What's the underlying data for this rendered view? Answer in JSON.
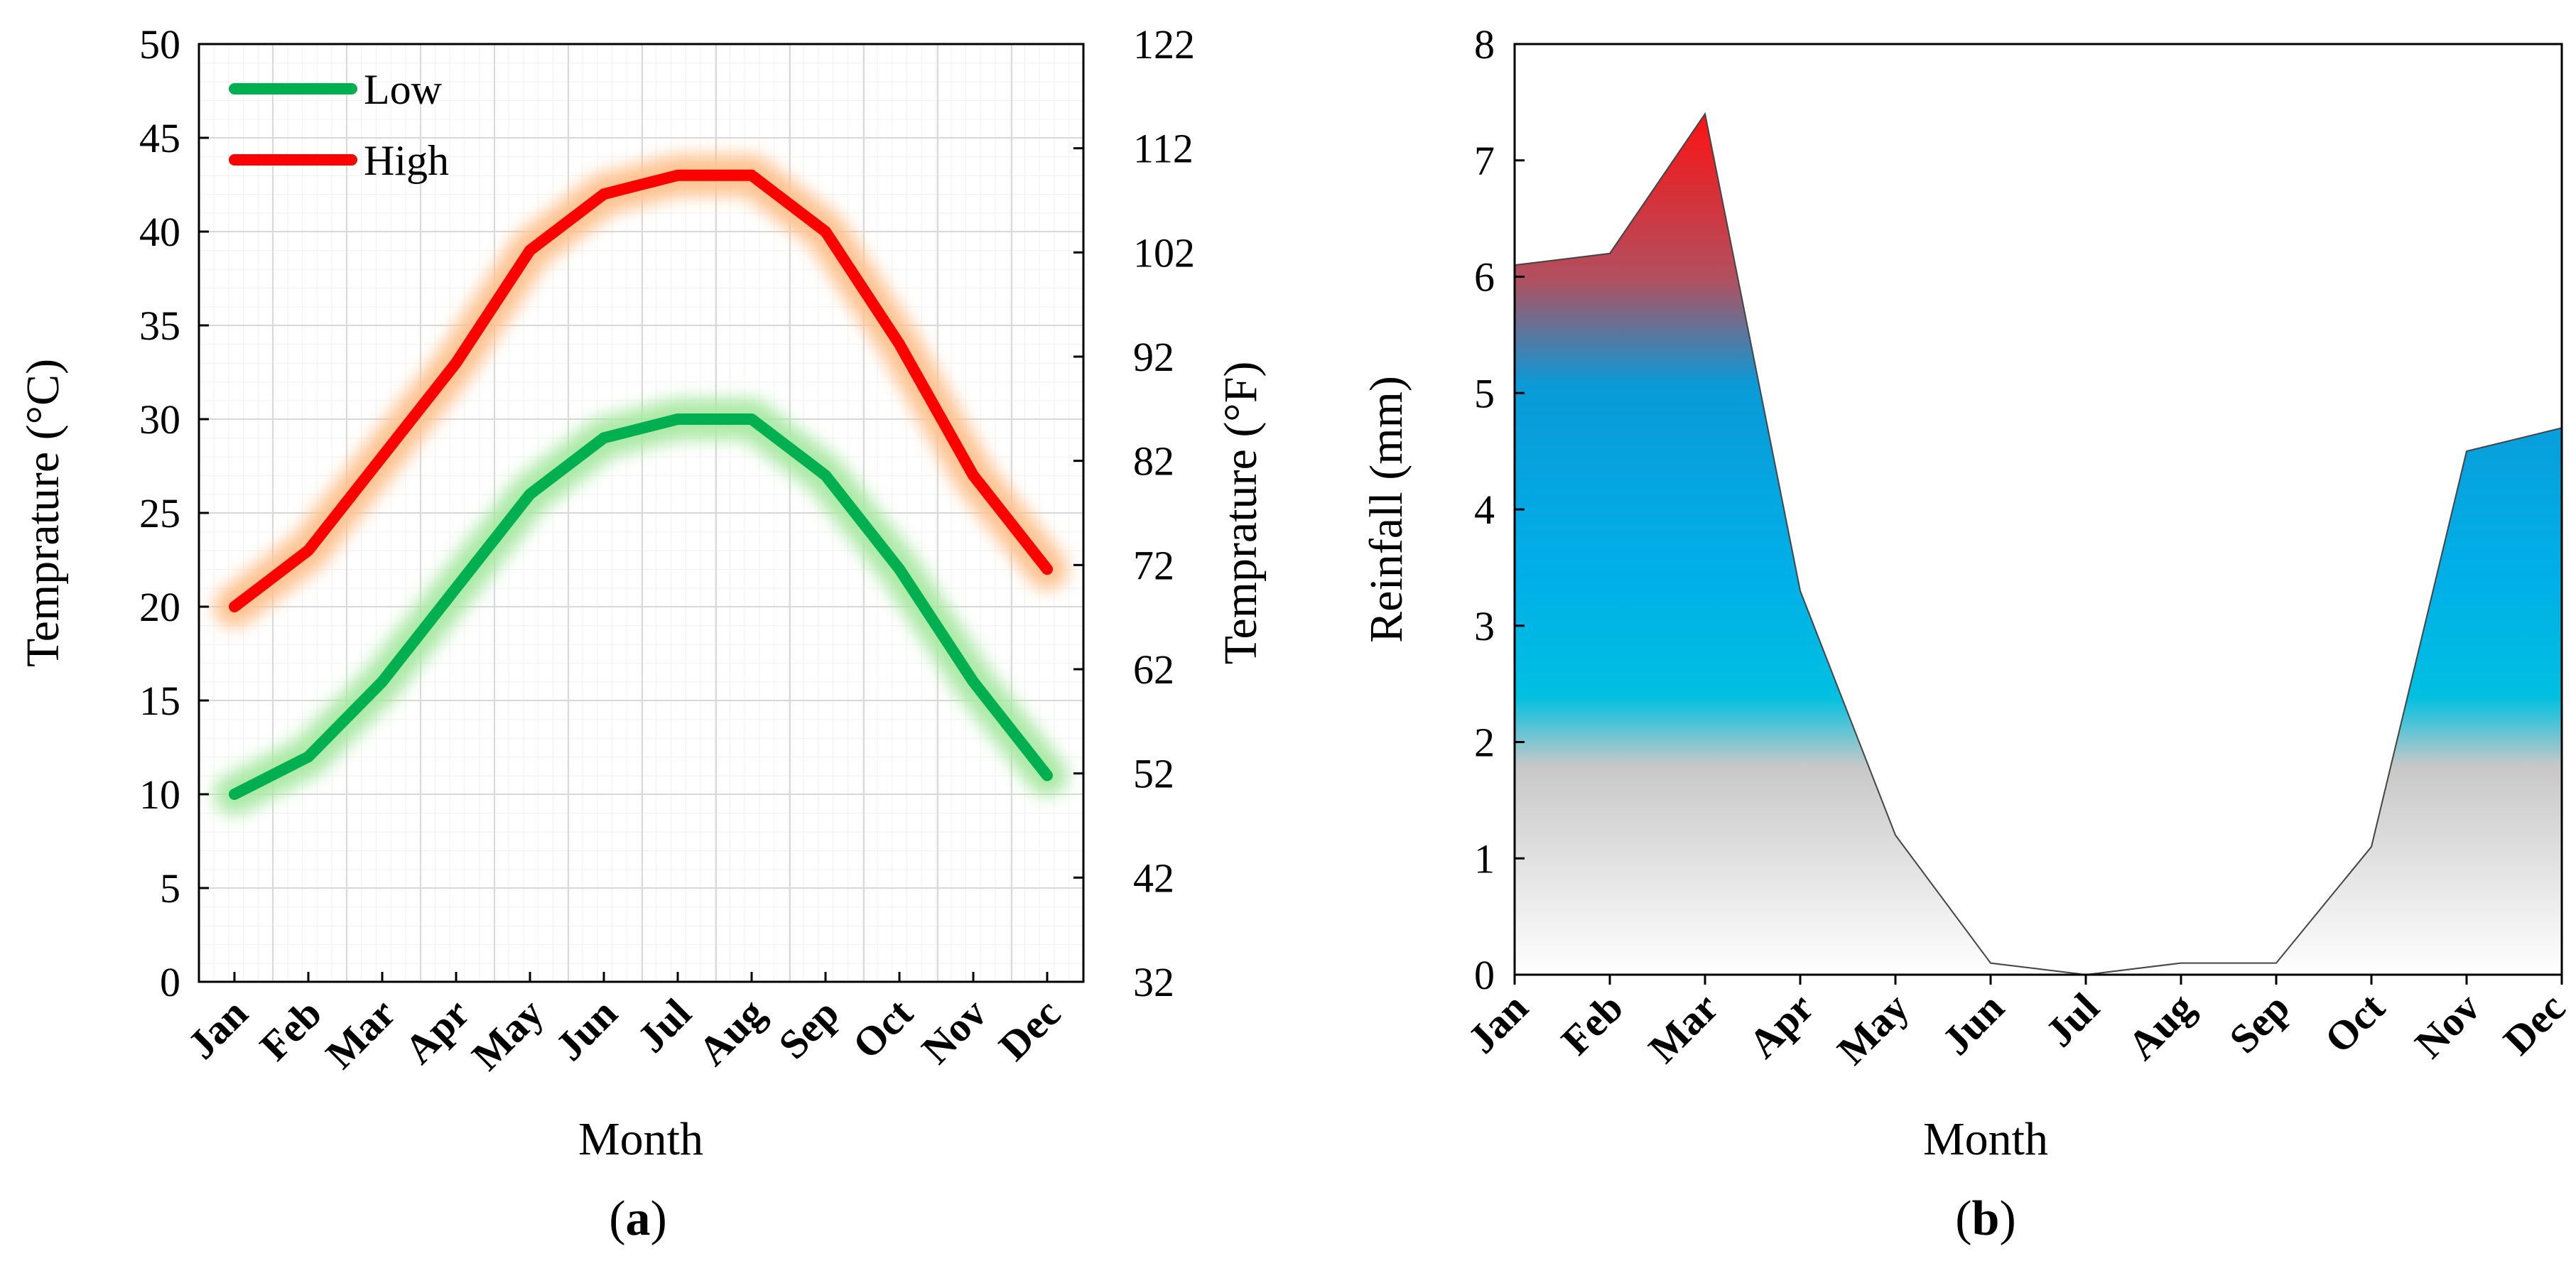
{
  "chart_data": [
    {
      "type": "line",
      "panel_label_open": "(",
      "panel_label": "a",
      "panel_label_close": ")",
      "categories": [
        "Jan",
        "Feb",
        "Mar",
        "Apr",
        "May",
        "Jun",
        "Jul",
        "Aug",
        "Sep",
        "Oct",
        "Nov",
        "Dec"
      ],
      "series": [
        {
          "name": "Low",
          "values": [
            10,
            12,
            16,
            21,
            26,
            29,
            30,
            30,
            27,
            22,
            16,
            11
          ],
          "color": "#00b050",
          "glow": "#a6e8a0"
        },
        {
          "name": "High",
          "values": [
            20,
            23,
            28,
            33,
            39,
            42,
            43,
            43,
            40,
            34,
            27,
            22
          ],
          "color": "#ff0000",
          "glow": "#ffc08a"
        }
      ],
      "xlabel": "Month",
      "ylabel": "Temprature (°C)",
      "y2label": "Temprature (°F)",
      "ylim": [
        0,
        50
      ],
      "yticks": [
        0,
        5,
        10,
        15,
        20,
        25,
        30,
        35,
        40,
        45,
        50
      ],
      "y2ticks": [
        32,
        42,
        52,
        62,
        72,
        82,
        92,
        102,
        112,
        122
      ],
      "grid": true,
      "legend_position": "top-left"
    },
    {
      "type": "area",
      "panel_label_open": "(",
      "panel_label": "b",
      "panel_label_close": ")",
      "categories": [
        "Jan",
        "Feb",
        "Mar",
        "Apr",
        "May",
        "Jun",
        "Jul",
        "Aug",
        "Sep",
        "Oct",
        "Nov",
        "Dec"
      ],
      "values": [
        6.1,
        6.2,
        7.4,
        3.3,
        1.2,
        0.1,
        0.0,
        0.1,
        0.1,
        1.1,
        4.5,
        4.7
      ],
      "xlabel": "Month",
      "ylabel": "Reinfall (mm)",
      "ylim": [
        0,
        8
      ],
      "yticks": [
        0,
        1,
        2,
        3,
        4,
        5,
        6,
        7,
        8
      ],
      "grid": false,
      "gradient_colors": [
        "#ff1010",
        "#b05060",
        "#0a9ad8",
        "#00b0e8",
        "#00c0e0",
        "#c8c8c8",
        "#ffffff"
      ]
    }
  ]
}
